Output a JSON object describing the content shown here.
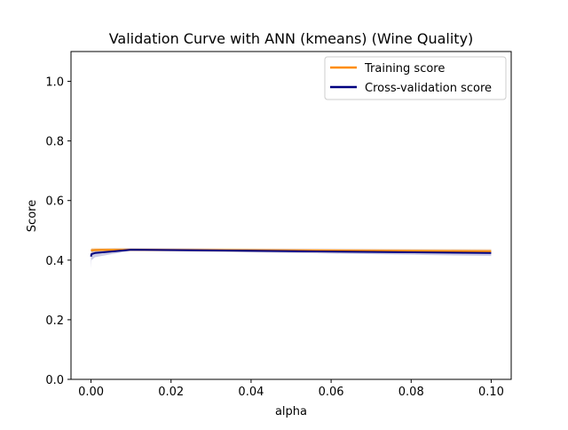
{
  "chart_data": {
    "type": "line",
    "title": "Validation Curve with ANN (kmeans) (Wine Quality)",
    "xlabel": "alpha",
    "ylabel": "Score",
    "xlim": [
      -0.005,
      0.105
    ],
    "ylim": [
      0.0,
      1.1
    ],
    "x_ticks": [
      0.0,
      0.02,
      0.04,
      0.06,
      0.08,
      0.1
    ],
    "x_tick_labels": [
      "0.00",
      "0.02",
      "0.04",
      "0.06",
      "0.08",
      "0.10"
    ],
    "y_ticks": [
      0.0,
      0.2,
      0.4,
      0.6,
      0.8,
      1.0
    ],
    "y_tick_labels": [
      "0.0",
      "0.2",
      "0.4",
      "0.6",
      "0.8",
      "1.0"
    ],
    "grid": false,
    "legend_position": "top-right",
    "x": [
      0.0,
      0.0001,
      0.001,
      0.01,
      0.1
    ],
    "series": [
      {
        "name": "Training score",
        "color": "#ff8c00",
        "values": [
          0.432,
          0.433,
          0.434,
          0.435,
          0.43
        ],
        "band_lower": [
          0.424,
          0.425,
          0.426,
          0.43,
          0.422
        ],
        "band_upper": [
          0.44,
          0.441,
          0.442,
          0.44,
          0.438
        ]
      },
      {
        "name": "Cross-validation score",
        "color": "#000080",
        "values": [
          0.412,
          0.42,
          0.424,
          0.435,
          0.424
        ],
        "band_lower": [
          0.372,
          0.4,
          0.41,
          0.432,
          0.414
        ],
        "band_upper": [
          0.432,
          0.438,
          0.438,
          0.44,
          0.434
        ]
      }
    ]
  }
}
